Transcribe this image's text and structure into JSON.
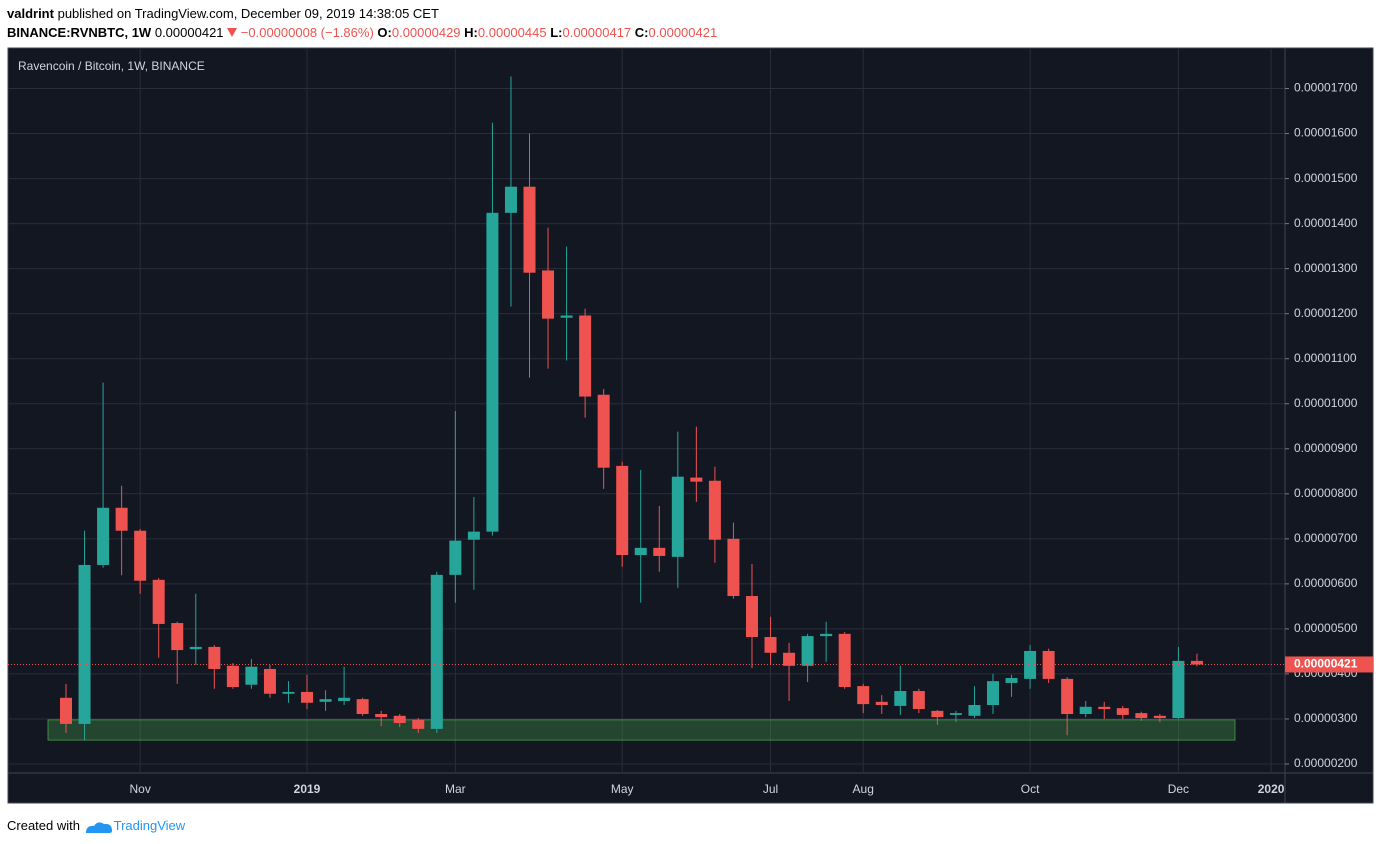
{
  "header": {
    "author": "valdrint",
    "published": "published on TradingView.com, December 09, 2019 14:38:05 CET",
    "symbol": "BINANCE:RVNBTC, 1W",
    "change": "−0.00000008 (−1.86%)",
    "open_label": "O:",
    "high_label": "H:",
    "low_label": "L:",
    "close_label": "C:"
  },
  "footer": {
    "created": "Created with",
    "brand": "TradingView"
  },
  "chart_data": {
    "type": "candlestick",
    "title": "Ravencoin / Bitcoin, 1W, BINANCE",
    "up_color": "#26a69a",
    "down_color": "#ef5350",
    "grid": true,
    "categories": [
      null,
      null,
      null,
      null,
      "Nov",
      null,
      null,
      null,
      null,
      null,
      null,
      null,
      null,
      "2019",
      null,
      null,
      null,
      null,
      null,
      null,
      null,
      "Mar",
      null,
      null,
      null,
      null,
      null,
      null,
      null,
      null,
      "May",
      null,
      null,
      null,
      null,
      null,
      null,
      null,
      "Jul",
      null,
      null,
      null,
      null,
      "Aug",
      null,
      null,
      null,
      null,
      null,
      null,
      null,
      null,
      "Oct",
      null,
      null,
      null,
      null,
      null,
      null,
      null,
      "Dec",
      null,
      null,
      null,
      null,
      "2020"
    ],
    "open": [
      3.47e-06,
      2.89e-06,
      6.42e-06,
      7.69e-06,
      7.18e-06,
      6.09e-06,
      5.13e-06,
      4.55e-06,
      4.6e-06,
      4.18e-06,
      3.76e-06,
      4.11e-06,
      3.56e-06,
      3.6e-06,
      3.38e-06,
      3.4e-06,
      3.44e-06,
      3.11e-06,
      3.07e-06,
      2.98e-06,
      2.78e-06,
      6.2e-06,
      6.98e-06,
      7.16e-06,
      1.424e-05,
      1.482e-05,
      1.296e-05,
      1.191e-05,
      1.196e-05,
      1.02e-05,
      8.62e-06,
      6.64e-06,
      6.8e-06,
      6.6e-06,
      8.36e-06,
      8.29e-06,
      7e-06,
      5.73e-06,
      4.82e-06,
      4.47e-06,
      4.18e-06,
      4.84e-06,
      4.89e-06,
      3.73e-06,
      3.38e-06,
      3.29e-06,
      3.62e-06,
      3.18e-06,
      3.09e-06,
      3.07e-06,
      3.31e-06,
      3.8e-06,
      3.89e-06,
      4.51e-06,
      3.89e-06,
      3.11e-06,
      3.27e-06,
      3.24e-06,
      3.13e-06,
      3.07e-06,
      3.02e-06,
      4.29e-06,
      null,
      null,
      null,
      null
    ],
    "high": [
      3.78e-06,
      7.18e-06,
      1.047e-05,
      8.18e-06,
      7.22e-06,
      6.13e-06,
      5.16e-06,
      5.78e-06,
      4.64e-06,
      4.24e-06,
      4.33e-06,
      4.2e-06,
      3.84e-06,
      3.98e-06,
      3.64e-06,
      4.16e-06,
      3.47e-06,
      3.18e-06,
      3.11e-06,
      3.02e-06,
      6.27e-06,
      9.84e-06,
      7.93e-06,
      1.624e-05,
      1.727e-05,
      1.6e-05,
      1.391e-05,
      1.349e-05,
      1.211e-05,
      1.033e-05,
      8.71e-06,
      8.53e-06,
      7.73e-06,
      9.38e-06,
      9.49e-06,
      8.6e-06,
      7.36e-06,
      6.44e-06,
      5.27e-06,
      4.69e-06,
      4.89e-06,
      5.16e-06,
      4.93e-06,
      3.78e-06,
      3.53e-06,
      4.18e-06,
      3.67e-06,
      3.2e-06,
      3.18e-06,
      3.73e-06,
      4e-06,
      3.98e-06,
      4.64e-06,
      4.56e-06,
      3.93e-06,
      3.4e-06,
      3.38e-06,
      3.29e-06,
      3.16e-06,
      3.11e-06,
      4.6e-06,
      4.45e-06,
      null,
      null,
      null,
      null
    ],
    "low": [
      2.69e-06,
      2.53e-06,
      6.36e-06,
      6.19e-06,
      5.78e-06,
      4.36e-06,
      3.78e-06,
      4.2e-06,
      3.67e-06,
      3.67e-06,
      3.67e-06,
      3.47e-06,
      3.36e-06,
      3.22e-06,
      3.18e-06,
      3.31e-06,
      3.07e-06,
      2.84e-06,
      2.82e-06,
      2.69e-06,
      2.69e-06,
      5.58e-06,
      5.87e-06,
      7.07e-06,
      1.216e-05,
      1.058e-05,
      1.078e-05,
      1.096e-05,
      9.69e-06,
      8.11e-06,
      6.38e-06,
      5.58e-06,
      6.27e-06,
      5.91e-06,
      7.82e-06,
      6.47e-06,
      5.67e-06,
      4.13e-06,
      4.2e-06,
      3.4e-06,
      3.82e-06,
      4.27e-06,
      3.67e-06,
      3.13e-06,
      3.11e-06,
      3.09e-06,
      3.13e-06,
      2.87e-06,
      2.93e-06,
      3.02e-06,
      3.11e-06,
      3.49e-06,
      3.67e-06,
      3.8e-06,
      2.64e-06,
      3.04e-06,
      3e-06,
      3e-06,
      2.96e-06,
      2.93e-06,
      3e-06,
      4.17e-06,
      null,
      null,
      null,
      null
    ],
    "close": [
      2.89e-06,
      6.42e-06,
      7.69e-06,
      7.18e-06,
      6.07e-06,
      5.11e-06,
      4.53e-06,
      4.6e-06,
      4.11e-06,
      3.71e-06,
      4.16e-06,
      3.56e-06,
      3.6e-06,
      3.36e-06,
      3.44e-06,
      3.47e-06,
      3.11e-06,
      3.04e-06,
      2.91e-06,
      2.78e-06,
      6.2e-06,
      6.96e-06,
      7.16e-06,
      1.424e-05,
      1.482e-05,
      1.291e-05,
      1.189e-05,
      1.196e-05,
      1.016e-05,
      8.58e-06,
      6.64e-06,
      6.8e-06,
      6.62e-06,
      8.38e-06,
      8.27e-06,
      6.98e-06,
      5.73e-06,
      4.82e-06,
      4.47e-06,
      4.18e-06,
      4.84e-06,
      4.89e-06,
      3.71e-06,
      3.33e-06,
      3.31e-06,
      3.62e-06,
      3.22e-06,
      3.04e-06,
      3.13e-06,
      3.31e-06,
      3.84e-06,
      3.91e-06,
      4.51e-06,
      3.89e-06,
      3.11e-06,
      3.27e-06,
      3.22e-06,
      3.09e-06,
      3.02e-06,
      3.02e-06,
      4.29e-06,
      4.21e-06,
      null,
      null,
      null,
      null
    ],
    "ylim": [
      1.8e-06,
      1.79e-05
    ],
    "yticks": [
      {
        "value": 2e-06,
        "label": "0.00000200"
      },
      {
        "value": 3e-06,
        "label": "0.00000300"
      },
      {
        "value": 4e-06,
        "label": "0.00000400"
      },
      {
        "value": 5e-06,
        "label": "0.00000500"
      },
      {
        "value": 6e-06,
        "label": "0.00000600"
      },
      {
        "value": 7e-06,
        "label": "0.00000700"
      },
      {
        "value": 8e-06,
        "label": "0.00000800"
      },
      {
        "value": 9e-06,
        "label": "0.00000900"
      },
      {
        "value": 1e-05,
        "label": "0.00001000"
      },
      {
        "value": 1.1e-05,
        "label": "0.00001100"
      },
      {
        "value": 1.2e-05,
        "label": "0.00001200"
      },
      {
        "value": 1.3e-05,
        "label": "0.00001300"
      },
      {
        "value": 1.4e-05,
        "label": "0.00001400"
      },
      {
        "value": 1.5e-05,
        "label": "0.00001500"
      },
      {
        "value": 1.6e-05,
        "label": "0.00001600"
      },
      {
        "value": 1.7e-05,
        "label": "0.00001700"
      }
    ],
    "zone": {
      "low": 2.53e-06,
      "high": 2.98e-06,
      "color": "#4caf50"
    }
  }
}
